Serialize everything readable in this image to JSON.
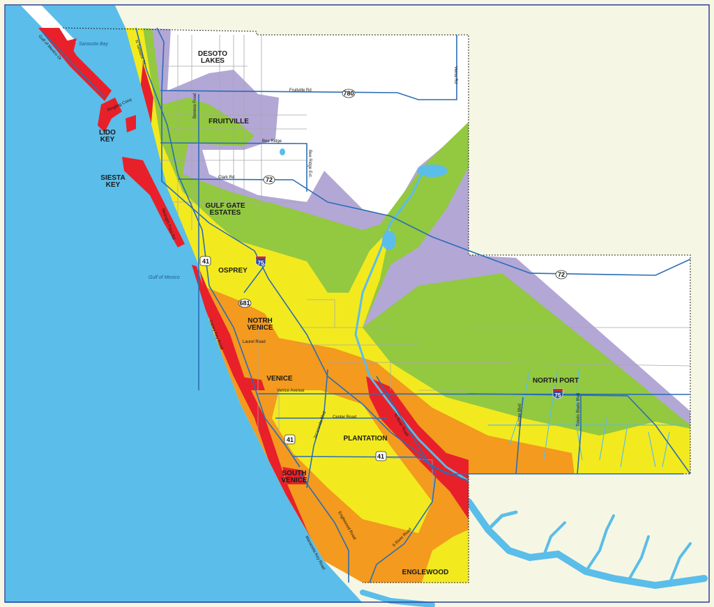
{
  "colors": {
    "water": "#5bbde9",
    "land_outside": "#f5f7e4",
    "zone_red": "#e8202a",
    "zone_orange": "#f39a1f",
    "zone_yellow": "#f2ea1e",
    "zone_green": "#93c841",
    "zone_purple": "#b3a7d6",
    "no_zone": "#ffffff",
    "roads": "#2a6db5",
    "streets": "#a8a8a8",
    "frame": "#2a3fa0"
  },
  "places": {
    "desoto_lakes": [
      "DESOTO",
      "LAKES"
    ],
    "fruitville": "FRUITVILLE",
    "lido_key": [
      "LIDO",
      "KEY"
    ],
    "siesta_key": [
      "SIESTA",
      "KEY"
    ],
    "gulf_gate_estates": [
      "GULF GATE",
      "ESTATES"
    ],
    "osprey": "OSPREY",
    "north_venice": [
      "NOTRH",
      "VENICE"
    ],
    "venice": "VENICE",
    "plantation": "PLANTATION",
    "south_venice": [
      "SOUTH",
      "VENICE"
    ],
    "englewood": "ENGLEWOOD",
    "north_port": "NORTH PORT"
  },
  "water_bodies": {
    "sarasota_bay": "Sarasota Bay",
    "gulf_of_mexico": "Gulf of Mexico"
  },
  "roads": {
    "gulf_of_mexico_dr": "Gulf of Mexico Dr",
    "n_tamiami_trl": "N Tamiami Trl",
    "fruitville_rd": "Fruitville Rd",
    "verna_rd": "Verna Rd",
    "beneva_road": "Beneva Road",
    "bee_ridge": "Bee Ridge",
    "bee_ridge_ext": "Bee Ridge Ext.",
    "clark_rd": "Clark Rd",
    "ringling_cswy": "Ringling Cswy",
    "midnight_pass_rd": "Midnight Pass Rd",
    "casey_key_road": "Casey Key Road",
    "laurel_road": "Laurel Road",
    "venice_avenue": "Venice Avenue",
    "center_road": "Center Road",
    "jacaranda_blvd": "Jacaranda Blvd",
    "n_river_road": "N River Road",
    "englewood_road": "Englewood Road",
    "s_river_road": "S River Road",
    "manasota_key_road": "Manasota Key Road",
    "sumter_blvd": "Sumter Blvd",
    "toledo_blade_blvd": "Toledo Blade Blvd"
  },
  "shields": {
    "sr780": "780",
    "sr72_west": "72",
    "sr72_east": "72",
    "us41_north": "41",
    "us41_mid": "41",
    "us41_south": "41",
    "sr681": "681",
    "i75_north": "75",
    "i75_east": "75"
  }
}
